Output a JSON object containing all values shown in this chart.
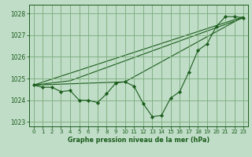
{
  "title": "Graphe pression niveau de la mer (hPa)",
  "bg_color": "#c0ddc8",
  "grid_color": "#7aaa7a",
  "line_color": "#1a5c1a",
  "xlim": [
    -0.5,
    23.5
  ],
  "ylim": [
    1022.8,
    1028.4
  ],
  "yticks": [
    1023,
    1024,
    1025,
    1026,
    1027,
    1028
  ],
  "xticks": [
    0,
    1,
    2,
    3,
    4,
    5,
    6,
    7,
    8,
    9,
    10,
    11,
    12,
    13,
    14,
    15,
    16,
    17,
    18,
    19,
    20,
    21,
    22,
    23
  ],
  "series1_y": [
    1024.7,
    1024.6,
    1024.6,
    1024.4,
    1024.45,
    1024.0,
    1024.0,
    1023.9,
    1024.3,
    1024.8,
    1024.85,
    1024.65,
    1023.85,
    1023.25,
    1023.3,
    1024.1,
    1024.4,
    1025.3,
    1026.3,
    1026.6,
    1027.4,
    1027.85,
    1027.85,
    1027.8
  ],
  "trend1_x": [
    0,
    23
  ],
  "trend1_y": [
    1024.7,
    1027.85
  ],
  "trend2_x": [
    0,
    10,
    23
  ],
  "trend2_y": [
    1024.7,
    1024.85,
    1027.85
  ],
  "trend3_x": [
    0,
    4,
    23
  ],
  "trend3_y": [
    1024.7,
    1024.9,
    1027.8
  ]
}
